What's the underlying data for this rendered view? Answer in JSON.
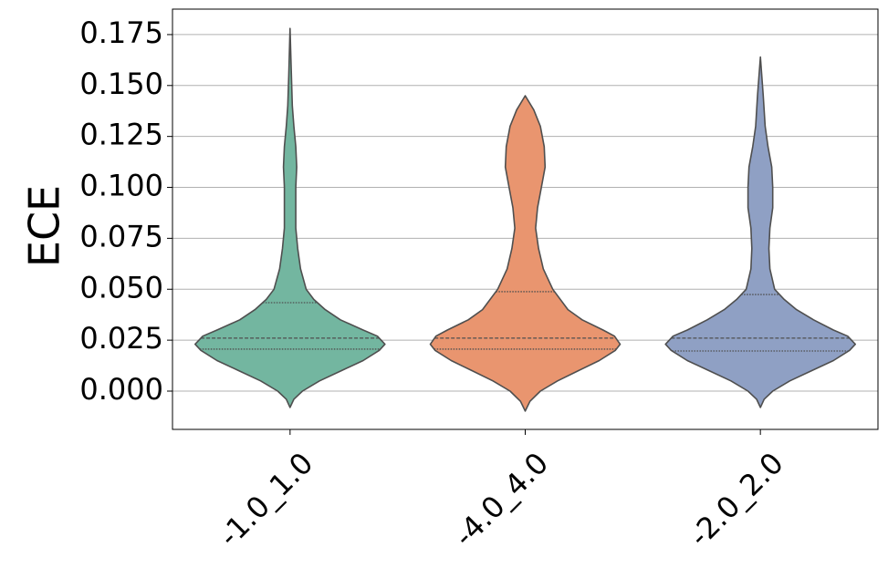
{
  "chart_data": {
    "type": "violin",
    "ylabel": "ECE",
    "categories": [
      "-1.0_1.0",
      "-4.0_4.0",
      "-2.0_2.0"
    ],
    "ylim": [
      -0.0188,
      0.1875
    ],
    "yticks": [
      {
        "value": 0,
        "label": "0.000"
      },
      {
        "value": 0.025,
        "label": "0.025"
      },
      {
        "value": 0.05,
        "label": "0.050"
      },
      {
        "value": 0.075,
        "label": "0.075"
      },
      {
        "value": 0.1,
        "label": "0.100"
      },
      {
        "value": 0.125,
        "label": "0.125"
      },
      {
        "value": 0.15,
        "label": "0.150"
      },
      {
        "value": 0.175,
        "label": "0.175"
      }
    ],
    "grid": true,
    "violins": [
      {
        "color": "#73b6a0",
        "quartiles": [
          0.0206,
          0.026,
          0.0434
        ],
        "profile_y": [
          -0.008,
          -0.004,
          0.0,
          0.005,
          0.01,
          0.015,
          0.02,
          0.023,
          0.027,
          0.03,
          0.035,
          0.04,
          0.045,
          0.05,
          0.06,
          0.07,
          0.08,
          0.09,
          0.1,
          0.11,
          0.12,
          0.13,
          0.14,
          0.155,
          0.178
        ],
        "profile_width": [
          0,
          0.04,
          0.13,
          0.31,
          0.54,
          0.77,
          0.94,
          1,
          0.92,
          0.77,
          0.53,
          0.37,
          0.25,
          0.17,
          0.11,
          0.08,
          0.06,
          0.06,
          0.06,
          0.07,
          0.06,
          0.04,
          0.024,
          0.014,
          0
        ]
      },
      {
        "color": "#e9956f",
        "quartiles": [
          0.0206,
          0.026,
          0.0488
        ],
        "profile_y": [
          -0.0098,
          -0.005,
          0.0,
          0.005,
          0.01,
          0.015,
          0.02,
          0.023,
          0.027,
          0.03,
          0.035,
          0.04,
          0.05,
          0.06,
          0.07,
          0.08,
          0.09,
          0.1,
          0.11,
          0.12,
          0.13,
          0.138,
          0.145
        ],
        "profile_width": [
          0,
          0.05,
          0.16,
          0.34,
          0.56,
          0.78,
          0.95,
          1,
          0.94,
          0.82,
          0.6,
          0.45,
          0.29,
          0.19,
          0.14,
          0.11,
          0.13,
          0.17,
          0.21,
          0.2,
          0.16,
          0.09,
          0
        ]
      },
      {
        "color": "#8fa0c4",
        "quartiles": [
          0.0197,
          0.026,
          0.0474
        ],
        "profile_y": [
          -0.008,
          -0.004,
          0.0,
          0.005,
          0.01,
          0.015,
          0.02,
          0.023,
          0.027,
          0.03,
          0.035,
          0.04,
          0.045,
          0.05,
          0.06,
          0.07,
          0.08,
          0.09,
          0.1,
          0.11,
          0.12,
          0.13,
          0.145,
          0.164
        ],
        "profile_width": [
          0,
          0.04,
          0.13,
          0.31,
          0.54,
          0.77,
          0.94,
          1,
          0.92,
          0.77,
          0.56,
          0.38,
          0.25,
          0.15,
          0.1,
          0.09,
          0.1,
          0.13,
          0.13,
          0.12,
          0.08,
          0.05,
          0.03,
          0
        ]
      }
    ]
  }
}
